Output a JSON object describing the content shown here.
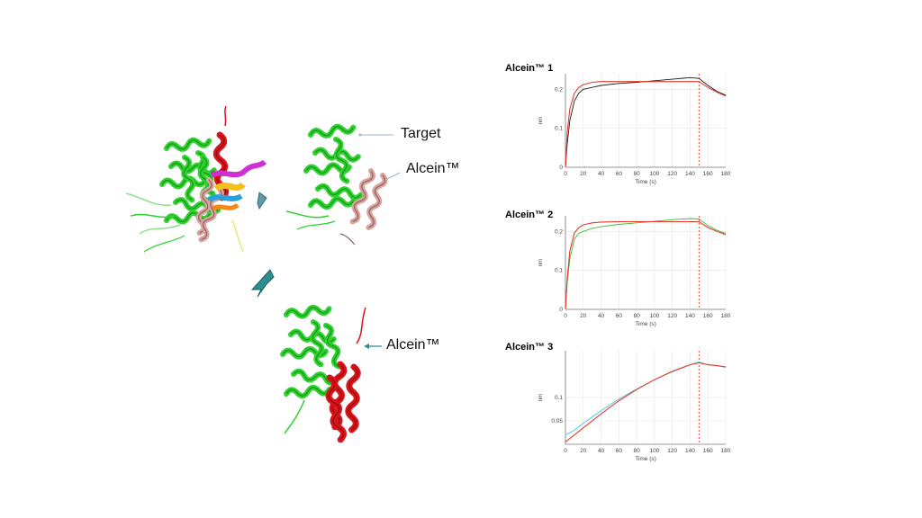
{
  "labels": {
    "target": "Target",
    "alcein_top": "Alcein™",
    "alcein_bottom": "Alcein™"
  },
  "colors": {
    "target_protein": "#2fd12f",
    "alcein_pink": "#d9a3a0",
    "alcein_red": "#d8141a",
    "arrow_teal": "#2f8c8c",
    "fit_line": "#e53a2a"
  },
  "chart_data": [
    {
      "type": "line",
      "title": "Alcein™ 1",
      "xlabel": "Time (s)",
      "ylabel": "nm",
      "xlim": [
        0,
        180
      ],
      "ylim": [
        0,
        0.24
      ],
      "xticks": [
        0,
        20,
        40,
        60,
        80,
        100,
        120,
        140,
        160,
        180
      ],
      "yticks": [
        0,
        0.1,
        0.2
      ],
      "ytick_labels": [
        "0",
        "0.1",
        "0.2"
      ],
      "marker_x": 150,
      "series": [
        {
          "color": "#1a1a1a",
          "x": [
            0,
            2,
            5,
            10,
            15,
            20,
            30,
            40,
            60,
            80,
            100,
            120,
            140,
            150,
            160,
            170,
            180
          ],
          "y": [
            0,
            0.06,
            0.12,
            0.17,
            0.19,
            0.2,
            0.205,
            0.21,
            0.215,
            0.218,
            0.222,
            0.226,
            0.23,
            0.228,
            0.21,
            0.195,
            0.185
          ]
        },
        {
          "color": "#e53a2a",
          "x": [
            0,
            2,
            5,
            10,
            15,
            20,
            30,
            40,
            60,
            80,
            100,
            120,
            140,
            150,
            160,
            170,
            180
          ],
          "y": [
            0,
            0.09,
            0.15,
            0.19,
            0.205,
            0.212,
            0.218,
            0.22,
            0.22,
            0.22,
            0.22,
            0.22,
            0.22,
            0.22,
            0.205,
            0.193,
            0.183
          ]
        }
      ]
    },
    {
      "type": "line",
      "title": "Alcein™ 2",
      "xlabel": "Time (s)",
      "ylabel": "nm",
      "xlim": [
        0,
        180
      ],
      "ylim": [
        0,
        0.24
      ],
      "xticks": [
        0,
        20,
        40,
        60,
        80,
        100,
        120,
        140,
        160,
        180
      ],
      "yticks": [
        0,
        0.1,
        0.2
      ],
      "ytick_labels": [
        "0",
        "0.1",
        "0.2"
      ],
      "marker_x": 150,
      "series": [
        {
          "color": "#3db83d",
          "x": [
            0,
            2,
            5,
            10,
            15,
            20,
            30,
            40,
            60,
            80,
            100,
            120,
            140,
            150,
            160,
            170,
            180
          ],
          "y": [
            0,
            0.07,
            0.13,
            0.18,
            0.195,
            0.2,
            0.208,
            0.212,
            0.218,
            0.222,
            0.226,
            0.23,
            0.233,
            0.232,
            0.215,
            0.203,
            0.195
          ]
        },
        {
          "color": "#e53a2a",
          "x": [
            0,
            2,
            5,
            10,
            15,
            20,
            30,
            40,
            60,
            80,
            100,
            120,
            140,
            150,
            160,
            170,
            180
          ],
          "y": [
            0,
            0.08,
            0.15,
            0.196,
            0.21,
            0.217,
            0.222,
            0.224,
            0.225,
            0.225,
            0.225,
            0.225,
            0.225,
            0.225,
            0.21,
            0.2,
            0.192
          ]
        }
      ]
    },
    {
      "type": "line",
      "title": "Alcein™ 3",
      "xlabel": "Time (s)",
      "ylabel": "nm",
      "xlim": [
        0,
        180
      ],
      "ylim": [
        0,
        0.2
      ],
      "xticks": [
        0,
        20,
        40,
        60,
        80,
        100,
        120,
        140,
        160,
        180
      ],
      "yticks": [
        0.05,
        0.1
      ],
      "ytick_labels": [
        "0.05",
        "0.1"
      ],
      "marker_x": 150,
      "series": [
        {
          "color": "#44c4dc",
          "x": [
            0,
            10,
            20,
            40,
            60,
            80,
            100,
            120,
            140,
            150,
            160,
            170,
            180
          ],
          "y": [
            0.02,
            0.03,
            0.045,
            0.072,
            0.097,
            0.118,
            0.138,
            0.155,
            0.17,
            0.176,
            0.17,
            0.168,
            0.166
          ]
        },
        {
          "color": "#e53a2a",
          "x": [
            0,
            10,
            20,
            40,
            60,
            80,
            100,
            120,
            140,
            150,
            160,
            170,
            180
          ],
          "y": [
            0.005,
            0.02,
            0.035,
            0.065,
            0.093,
            0.117,
            0.138,
            0.156,
            0.17,
            0.174,
            0.17,
            0.168,
            0.165
          ]
        }
      ]
    }
  ]
}
